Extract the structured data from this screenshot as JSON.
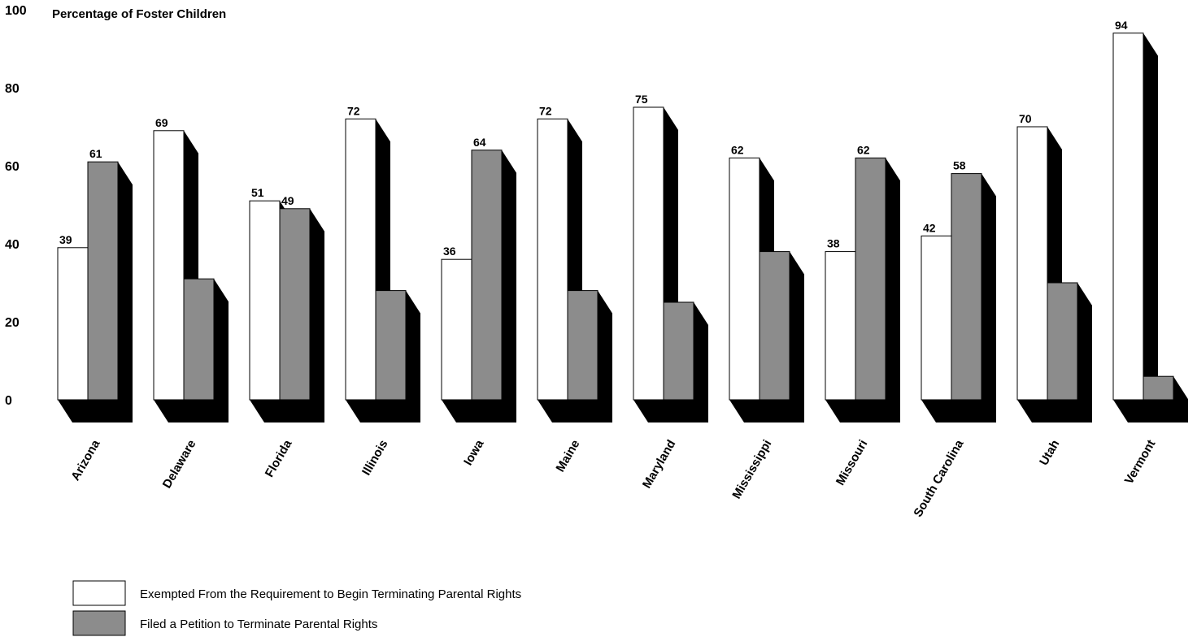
{
  "chart_data": {
    "type": "bar",
    "ylabel": "Percentage of Foster Children",
    "ylim": [
      0,
      100
    ],
    "yticks": [
      0,
      20,
      40,
      60,
      80,
      100
    ],
    "grid": false,
    "legend_position": "bottom-left",
    "categories": [
      "Arizona",
      "Delaware",
      "Florida",
      "Illinois",
      "Iowa",
      "Maine",
      "Maryland",
      "Mississippi",
      "Missouri",
      "South Carolina",
      "Utah",
      "Vermont"
    ],
    "series": [
      {
        "name": "Exempted From the Requirement to Begin Terminating Parental Rights",
        "color": "#ffffff",
        "values": [
          39,
          69,
          51,
          72,
          36,
          72,
          75,
          62,
          38,
          42,
          70,
          94
        ]
      },
      {
        "name": "Filed a Petition to Terminate Parental Rights",
        "color": "#8c8c8c",
        "values": [
          61,
          31,
          49,
          28,
          64,
          28,
          25,
          38,
          62,
          58,
          30,
          6
        ]
      }
    ]
  }
}
